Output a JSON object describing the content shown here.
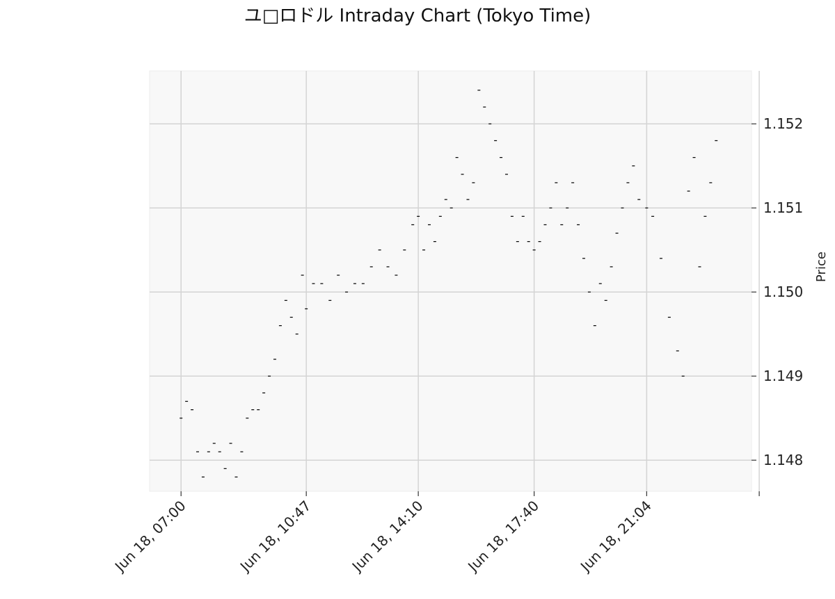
{
  "chart_data": {
    "type": "scatter",
    "title": "ユ□ロドル Intraday Chart (Tokyo Time)",
    "xlabel": "",
    "ylabel": "Price",
    "x_ticks": [
      "Jun 18, 07:00",
      "Jun 18, 10:47",
      "Jun 18, 14:10",
      "Jun 18, 17:40",
      "Jun 18, 21:04",
      ""
    ],
    "y_ticks": [
      "1.148",
      "1.149",
      "1.150",
      "1.151",
      "1.152"
    ],
    "xlim": [
      "Jun 18, 06:03",
      "Jun 19, 00:14"
    ],
    "ylim": [
      1.14763,
      1.15263
    ],
    "grid": true,
    "series": [
      {
        "marker": "tick",
        "color": "#000000",
        "points": [
          [
            "Jun 18, 07:00",
            1.1485
          ],
          [
            "Jun 18, 07:10",
            1.1487
          ],
          [
            "Jun 18, 07:20",
            1.1486
          ],
          [
            "Jun 18, 07:30",
            1.1481
          ],
          [
            "Jun 18, 07:40",
            1.1478
          ],
          [
            "Jun 18, 07:50",
            1.1481
          ],
          [
            "Jun 18, 08:00",
            1.1482
          ],
          [
            "Jun 18, 08:10",
            1.1481
          ],
          [
            "Jun 18, 08:20",
            1.1479
          ],
          [
            "Jun 18, 08:30",
            1.1482
          ],
          [
            "Jun 18, 08:40",
            1.1478
          ],
          [
            "Jun 18, 08:50",
            1.1481
          ],
          [
            "Jun 18, 09:00",
            1.1485
          ],
          [
            "Jun 18, 09:10",
            1.1486
          ],
          [
            "Jun 18, 09:20",
            1.1486
          ],
          [
            "Jun 18, 09:30",
            1.1488
          ],
          [
            "Jun 18, 09:40",
            1.149
          ],
          [
            "Jun 18, 09:50",
            1.1492
          ],
          [
            "Jun 18, 10:00",
            1.1496
          ],
          [
            "Jun 18, 10:10",
            1.1499
          ],
          [
            "Jun 18, 10:20",
            1.1497
          ],
          [
            "Jun 18, 10:30",
            1.1495
          ],
          [
            "Jun 18, 10:40",
            1.1502
          ],
          [
            "Jun 18, 10:47",
            1.1498
          ],
          [
            "Jun 18, 11:00",
            1.1501
          ],
          [
            "Jun 18, 11:15",
            1.1501
          ],
          [
            "Jun 18, 11:30",
            1.1499
          ],
          [
            "Jun 18, 11:45",
            1.1502
          ],
          [
            "Jun 18, 12:00",
            1.15
          ],
          [
            "Jun 18, 12:15",
            1.1501
          ],
          [
            "Jun 18, 12:30",
            1.1501
          ],
          [
            "Jun 18, 12:45",
            1.1503
          ],
          [
            "Jun 18, 13:00",
            1.1505
          ],
          [
            "Jun 18, 13:15",
            1.1503
          ],
          [
            "Jun 18, 13:30",
            1.1502
          ],
          [
            "Jun 18, 13:45",
            1.1505
          ],
          [
            "Jun 18, 14:00",
            1.1508
          ],
          [
            "Jun 18, 14:10",
            1.1509
          ],
          [
            "Jun 18, 14:20",
            1.1505
          ],
          [
            "Jun 18, 14:30",
            1.1508
          ],
          [
            "Jun 18, 14:40",
            1.1506
          ],
          [
            "Jun 18, 14:50",
            1.1509
          ],
          [
            "Jun 18, 15:00",
            1.1511
          ],
          [
            "Jun 18, 15:10",
            1.151
          ],
          [
            "Jun 18, 15:20",
            1.1516
          ],
          [
            "Jun 18, 15:30",
            1.1514
          ],
          [
            "Jun 18, 15:40",
            1.1511
          ],
          [
            "Jun 18, 15:50",
            1.1513
          ],
          [
            "Jun 18, 16:00",
            1.1524
          ],
          [
            "Jun 18, 16:10",
            1.1522
          ],
          [
            "Jun 18, 16:20",
            1.152
          ],
          [
            "Jun 18, 16:30",
            1.1518
          ],
          [
            "Jun 18, 16:40",
            1.1516
          ],
          [
            "Jun 18, 16:50",
            1.1514
          ],
          [
            "Jun 18, 17:00",
            1.1509
          ],
          [
            "Jun 18, 17:10",
            1.1506
          ],
          [
            "Jun 18, 17:20",
            1.1509
          ],
          [
            "Jun 18, 17:30",
            1.1506
          ],
          [
            "Jun 18, 17:40",
            1.1505
          ],
          [
            "Jun 18, 17:50",
            1.1506
          ],
          [
            "Jun 18, 18:00",
            1.1508
          ],
          [
            "Jun 18, 18:10",
            1.151
          ],
          [
            "Jun 18, 18:20",
            1.1513
          ],
          [
            "Jun 18, 18:30",
            1.1508
          ],
          [
            "Jun 18, 18:40",
            1.151
          ],
          [
            "Jun 18, 18:50",
            1.1513
          ],
          [
            "Jun 18, 19:00",
            1.1508
          ],
          [
            "Jun 18, 19:10",
            1.1504
          ],
          [
            "Jun 18, 19:20",
            1.15
          ],
          [
            "Jun 18, 19:30",
            1.1496
          ],
          [
            "Jun 18, 19:40",
            1.1501
          ],
          [
            "Jun 18, 19:50",
            1.1499
          ],
          [
            "Jun 18, 20:00",
            1.1503
          ],
          [
            "Jun 18, 20:10",
            1.1507
          ],
          [
            "Jun 18, 20:20",
            1.151
          ],
          [
            "Jun 18, 20:30",
            1.1513
          ],
          [
            "Jun 18, 20:40",
            1.1515
          ],
          [
            "Jun 18, 20:50",
            1.1511
          ],
          [
            "Jun 18, 21:04",
            1.151
          ],
          [
            "Jun 18, 21:15",
            1.1509
          ],
          [
            "Jun 18, 21:30",
            1.1504
          ],
          [
            "Jun 18, 21:45",
            1.1497
          ],
          [
            "Jun 18, 22:00",
            1.1493
          ],
          [
            "Jun 18, 22:10",
            1.149
          ],
          [
            "Jun 18, 22:20",
            1.1512
          ],
          [
            "Jun 18, 22:30",
            1.1516
          ],
          [
            "Jun 18, 22:40",
            1.1503
          ],
          [
            "Jun 18, 22:50",
            1.1509
          ],
          [
            "Jun 18, 23:00",
            1.1513
          ],
          [
            "Jun 18, 23:10",
            1.1518
          ]
        ]
      }
    ]
  }
}
